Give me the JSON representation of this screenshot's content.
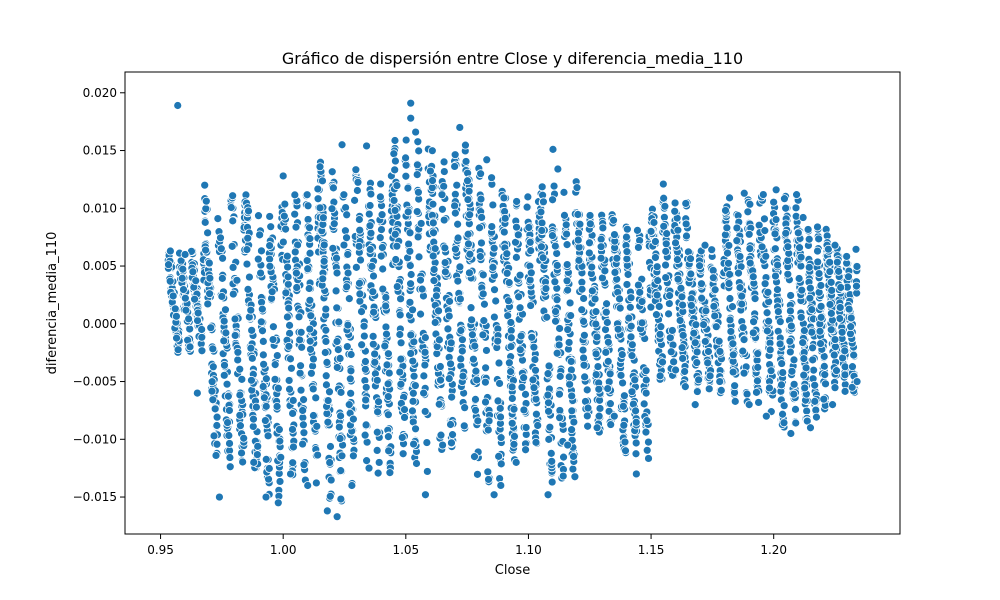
{
  "chart_data": {
    "type": "scatter",
    "title": "Gráfico de dispersión entre Close y diferencia_media_110",
    "xlabel": "Close",
    "ylabel": "diferencia_media_110",
    "xlim": [
      0.9355,
      1.2515
    ],
    "ylim": [
      -0.0182,
      0.0218
    ],
    "xticks": [
      {
        "value": 0.95,
        "label": "0.95"
      },
      {
        "value": 1.0,
        "label": "1.00"
      },
      {
        "value": 1.05,
        "label": "1.05"
      },
      {
        "value": 1.1,
        "label": "1.10"
      },
      {
        "value": 1.15,
        "label": "1.15"
      },
      {
        "value": 1.2,
        "label": "1.20"
      }
    ],
    "yticks": [
      {
        "value": -0.015,
        "label": "−0.015"
      },
      {
        "value": -0.01,
        "label": "−0.010"
      },
      {
        "value": -0.005,
        "label": "−0.005"
      },
      {
        "value": 0.0,
        "label": "0.000"
      },
      {
        "value": 0.005,
        "label": "0.005"
      },
      {
        "value": 0.01,
        "label": "0.010"
      },
      {
        "value": 0.015,
        "label": "0.015"
      },
      {
        "value": 0.02,
        "label": "0.020"
      }
    ],
    "grid": false,
    "marker_color": "#1f77b4",
    "marker_edge_color": "#ffffff",
    "points": [
      {
        "x": 0.957,
        "y": 0.0189
      },
      {
        "x": 1.052,
        "y": 0.0191
      },
      {
        "x": 1.052,
        "y": 0.0178
      },
      {
        "x": 1.072,
        "y": 0.017
      },
      {
        "x": 1.034,
        "y": 0.0154
      },
      {
        "x": 1.11,
        "y": 0.0151
      },
      {
        "x": 1.024,
        "y": 0.0155
      },
      {
        "x": 1.083,
        "y": 0.0142
      },
      {
        "x": 1.112,
        "y": 0.0134
      },
      {
        "x": 1.054,
        "y": 0.0166
      },
      {
        "x": 1.0,
        "y": 0.0128
      },
      {
        "x": 0.968,
        "y": 0.012
      },
      {
        "x": 1.155,
        "y": 0.0121
      },
      {
        "x": 1.201,
        "y": 0.0116
      },
      {
        "x": 1.188,
        "y": 0.0113
      },
      {
        "x": 1.182,
        "y": 0.0109
      },
      {
        "x": 0.954,
        "y": 0.0063
      },
      {
        "x": 0.96,
        "y": 0.006
      },
      {
        "x": 0.962,
        "y": -0.002
      },
      {
        "x": 0.965,
        "y": -0.006
      },
      {
        "x": 0.974,
        "y": -0.015
      },
      {
        "x": 0.988,
        "y": -0.012
      },
      {
        "x": 0.993,
        "y": -0.015
      },
      {
        "x": 0.998,
        "y": -0.0155
      },
      {
        "x": 1.003,
        "y": -0.013
      },
      {
        "x": 1.01,
        "y": -0.014
      },
      {
        "x": 1.018,
        "y": -0.0162
      },
      {
        "x": 1.022,
        "y": -0.0167
      },
      {
        "x": 1.028,
        "y": -0.014
      },
      {
        "x": 1.035,
        "y": -0.0125
      },
      {
        "x": 1.043,
        "y": -0.011
      },
      {
        "x": 1.058,
        "y": -0.0148
      },
      {
        "x": 1.065,
        "y": -0.0105
      },
      {
        "x": 1.078,
        "y": -0.0115
      },
      {
        "x": 1.086,
        "y": -0.0148
      },
      {
        "x": 1.095,
        "y": -0.012
      },
      {
        "x": 1.108,
        "y": -0.0148
      },
      {
        "x": 1.116,
        "y": -0.0105
      },
      {
        "x": 1.128,
        "y": -0.009
      },
      {
        "x": 1.135,
        "y": -0.008
      },
      {
        "x": 1.144,
        "y": -0.013
      },
      {
        "x": 1.148,
        "y": -0.006
      },
      {
        "x": 1.15,
        "y": 0.008
      },
      {
        "x": 1.16,
        "y": -0.004
      },
      {
        "x": 1.168,
        "y": -0.007
      },
      {
        "x": 1.178,
        "y": -0.005
      },
      {
        "x": 1.19,
        "y": -0.007
      },
      {
        "x": 1.197,
        "y": -0.008
      },
      {
        "x": 1.207,
        "y": -0.0095
      },
      {
        "x": 1.215,
        "y": -0.009
      },
      {
        "x": 1.224,
        "y": -0.007
      },
      {
        "x": 1.232,
        "y": -0.0055
      },
      {
        "x": 1.234,
        "y": -0.005
      },
      {
        "x": 1.225,
        "y": 0.0068
      },
      {
        "x": 1.212,
        "y": 0.0092
      },
      {
        "x": 1.172,
        "y": 0.0068
      }
    ],
    "bands": [
      {
        "xmin": 0.953,
        "xmax": 0.968,
        "lo": -0.0025,
        "hi": 0.0063
      },
      {
        "xmin": 0.968,
        "xmax": 0.985,
        "lo": -0.0125,
        "hi": 0.0112
      },
      {
        "xmin": 0.985,
        "xmax": 1.0,
        "lo": -0.015,
        "hi": 0.0105
      },
      {
        "xmin": 1.0,
        "xmax": 1.015,
        "lo": -0.014,
        "hi": 0.0118
      },
      {
        "xmin": 1.015,
        "xmax": 1.03,
        "lo": -0.0155,
        "hi": 0.014
      },
      {
        "xmin": 1.03,
        "xmax": 1.045,
        "lo": -0.013,
        "hi": 0.013
      },
      {
        "xmin": 1.045,
        "xmax": 1.06,
        "lo": -0.013,
        "hi": 0.016
      },
      {
        "xmin": 1.06,
        "xmax": 1.075,
        "lo": -0.011,
        "hi": 0.0155
      },
      {
        "xmin": 1.075,
        "xmax": 1.09,
        "lo": -0.014,
        "hi": 0.0135
      },
      {
        "xmin": 1.09,
        "xmax": 1.105,
        "lo": -0.012,
        "hi": 0.011
      },
      {
        "xmin": 1.105,
        "xmax": 1.12,
        "lo": -0.014,
        "hi": 0.0125
      },
      {
        "xmin": 1.12,
        "xmax": 1.135,
        "lo": -0.0095,
        "hi": 0.0095
      },
      {
        "xmin": 1.135,
        "xmax": 1.15,
        "lo": -0.012,
        "hi": 0.0085
      },
      {
        "xmin": 1.15,
        "xmax": 1.165,
        "lo": -0.0055,
        "hi": 0.011
      },
      {
        "xmin": 1.165,
        "xmax": 1.18,
        "lo": -0.006,
        "hi": 0.0065
      },
      {
        "xmin": 1.18,
        "xmax": 1.195,
        "lo": -0.007,
        "hi": 0.0108
      },
      {
        "xmin": 1.195,
        "xmax": 1.21,
        "lo": -0.009,
        "hi": 0.0112
      },
      {
        "xmin": 1.21,
        "xmax": 1.222,
        "lo": -0.0085,
        "hi": 0.0085
      },
      {
        "xmin": 1.222,
        "xmax": 1.234,
        "lo": -0.006,
        "hi": 0.0065
      }
    ]
  }
}
